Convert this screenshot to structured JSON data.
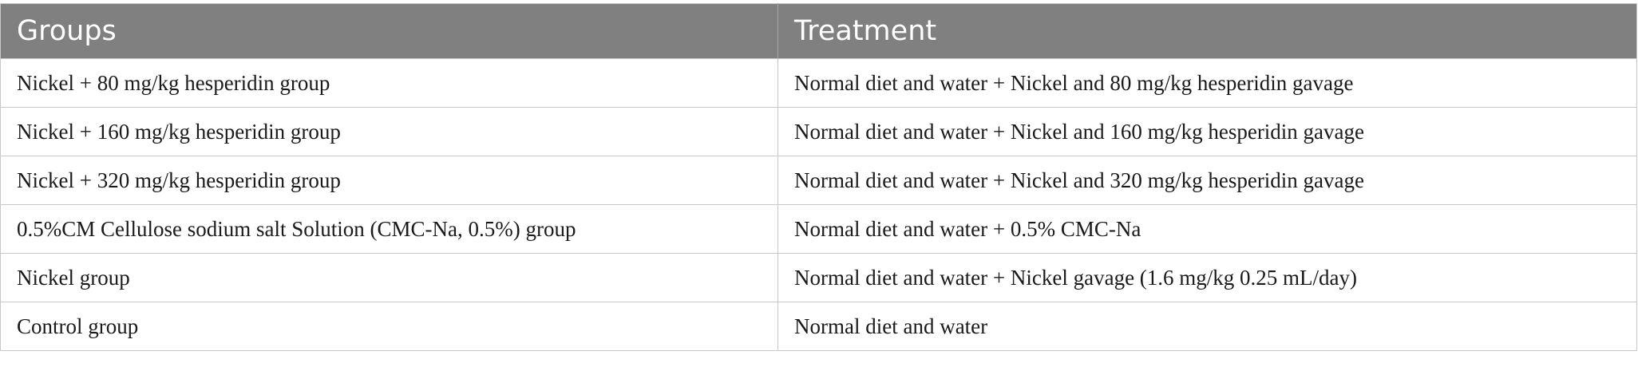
{
  "header": {
    "groups_label": "Groups",
    "treatment_label": "Treatment"
  },
  "rows": [
    {
      "group": "Nickel + 80 mg/kg hesperidin group",
      "treatment": "Normal diet and water + Nickel and 80 mg/kg hesperidin gavage"
    },
    {
      "group": "Nickel + 160 mg/kg hesperidin group",
      "treatment": "Normal diet and water + Nickel and 160 mg/kg hesperidin gavage"
    },
    {
      "group": "Nickel + 320 mg/kg hesperidin group",
      "treatment": "Normal diet and water + Nickel and 320 mg/kg hesperidin gavage"
    },
    {
      "group": "0.5%CM Cellulose sodium salt Solution (CMC-Na, 0.5%) group",
      "treatment": "Normal diet and water + 0.5% CMC-Na"
    },
    {
      "group": "Nickel group",
      "treatment": "Normal diet and water + Nickel gavage (1.6 mg/kg 0.25 mL/day)"
    },
    {
      "group": "Control group",
      "treatment": "Normal diet and water"
    }
  ],
  "colors": {
    "header_bg": "#808080",
    "header_text": "#ffffff",
    "border": "#c8c8c8"
  }
}
